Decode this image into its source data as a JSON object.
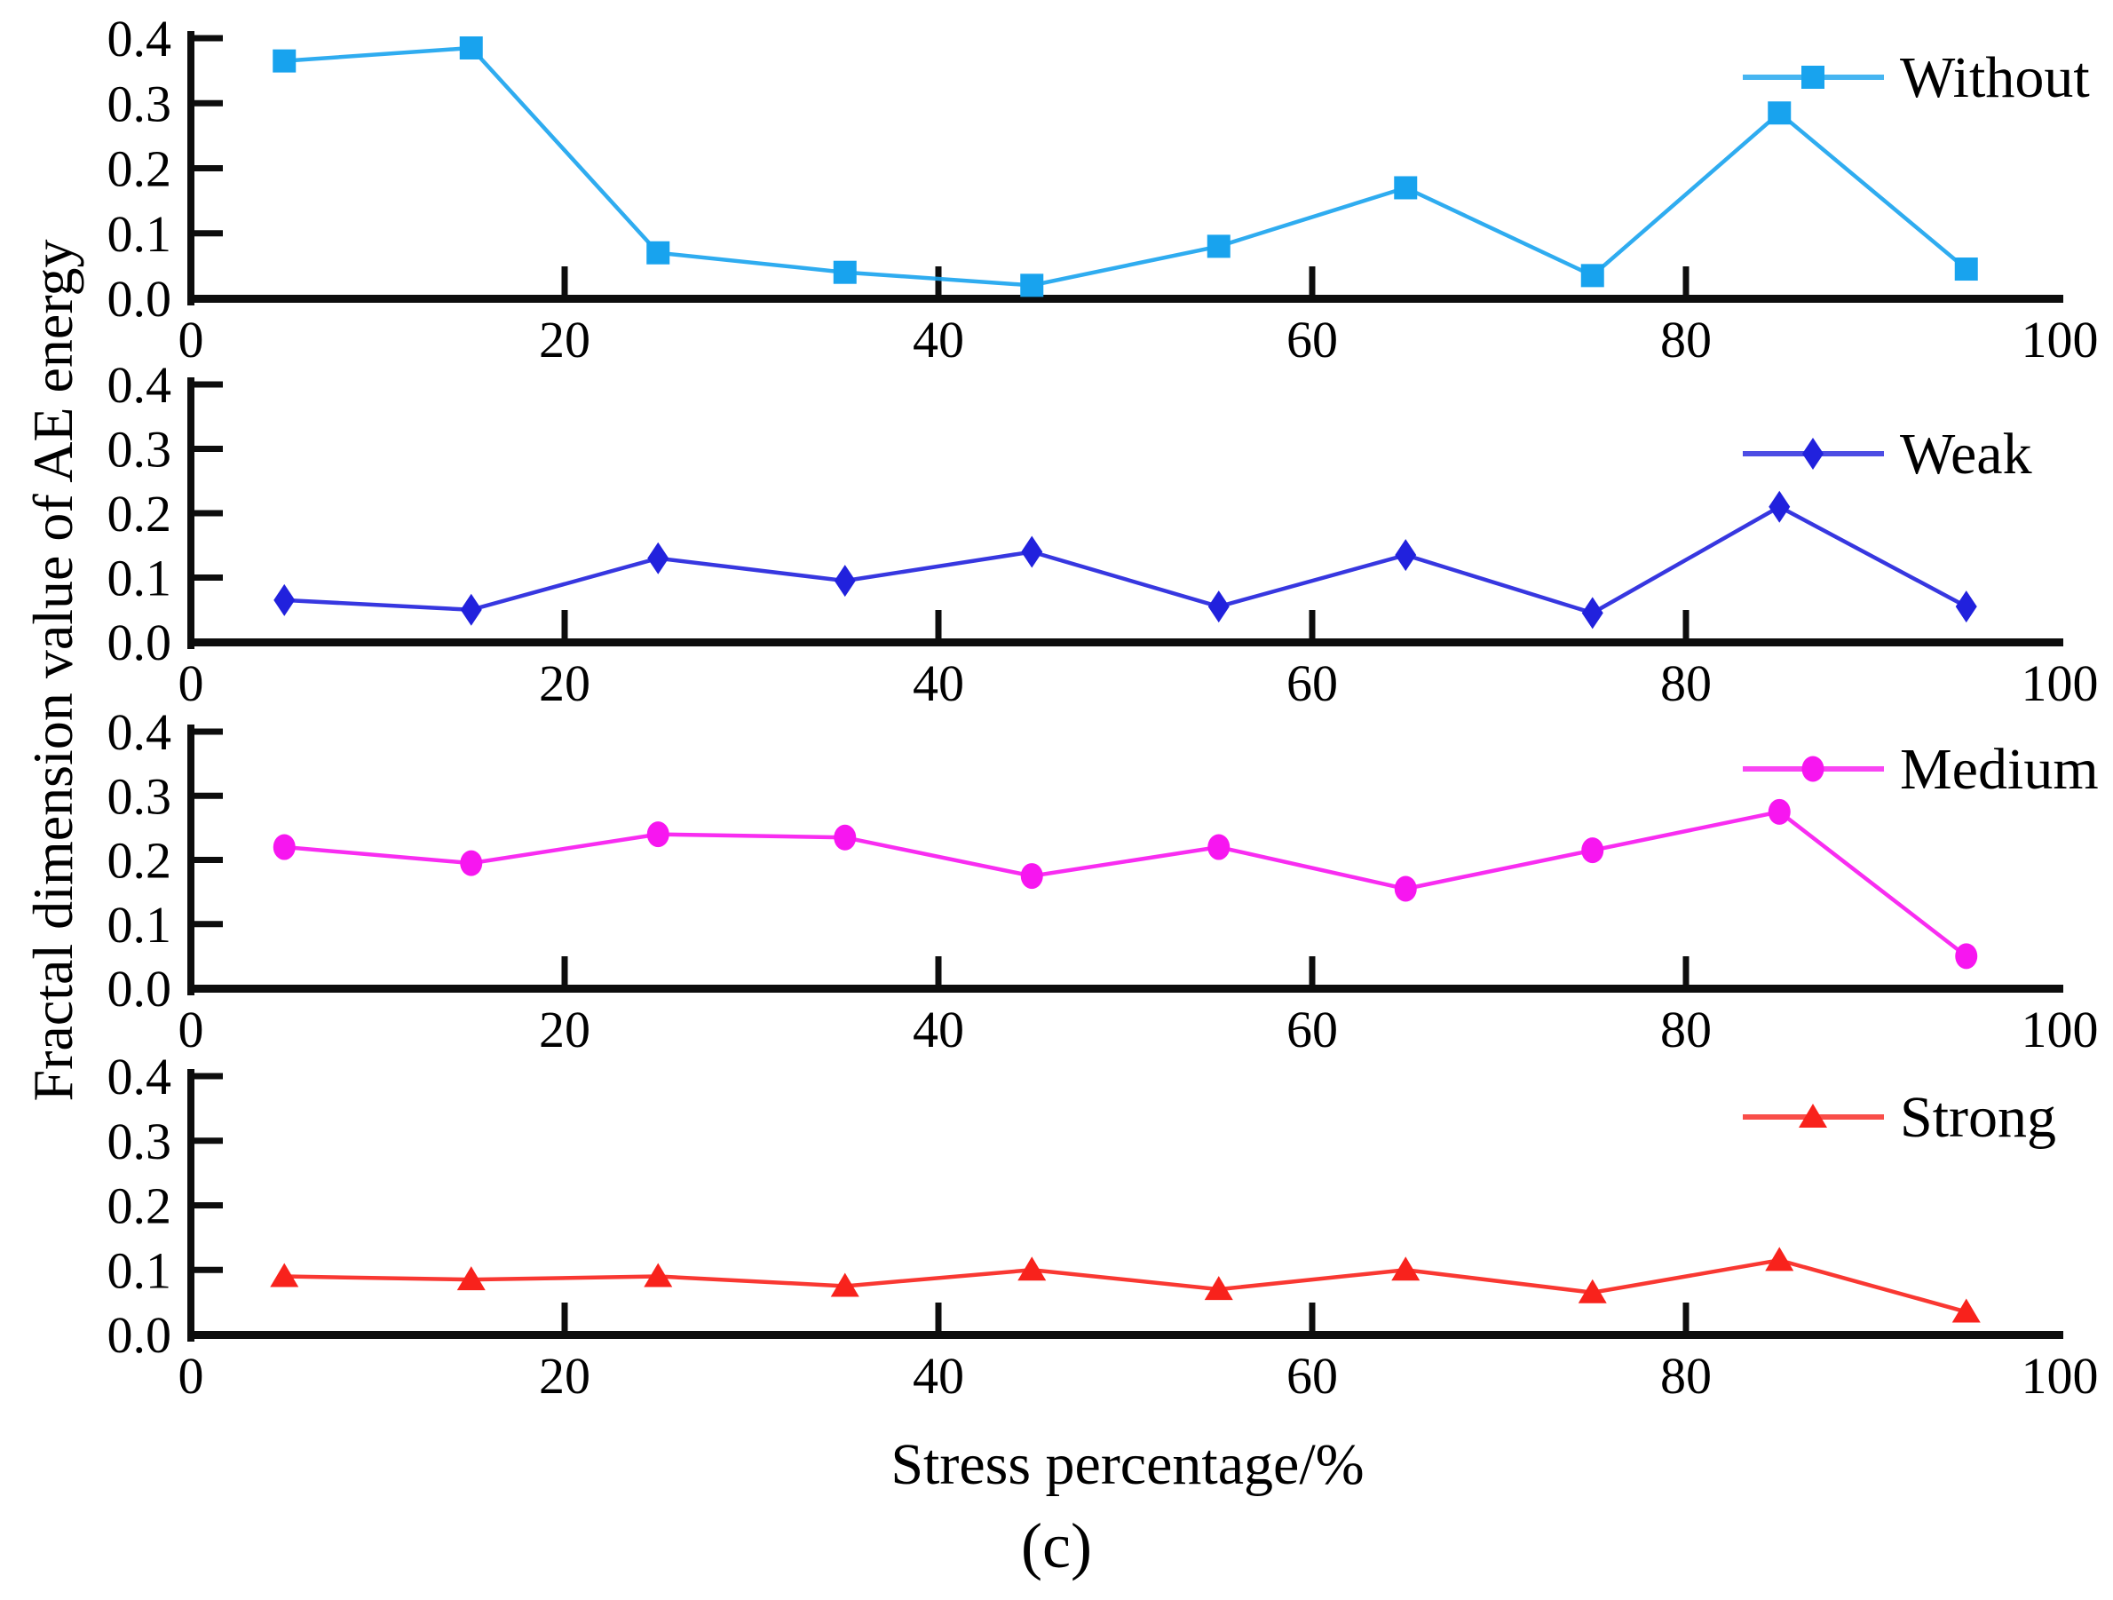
{
  "chart_data": {
    "type": "line",
    "title": "",
    "caption": "(c)",
    "x": [
      5,
      15,
      25,
      35,
      45,
      55,
      65,
      75,
      85,
      95
    ],
    "x_axis": {
      "label": "Stress percentage/%",
      "ticks": [
        "0",
        "20",
        "40",
        "60",
        "80",
        "100"
      ],
      "tick_values": [
        0,
        20,
        40,
        60,
        80,
        100
      ],
      "range": [
        0,
        100
      ]
    },
    "y_axis": {
      "label": "Fractal dimension value of AE energy",
      "ticks": [
        "0.0",
        "0.1",
        "0.2",
        "0.3",
        "0.4"
      ],
      "tick_values": [
        0,
        0.1,
        0.2,
        0.3,
        0.4
      ],
      "range": [
        0,
        0.4
      ]
    },
    "legend_position": "top-right-of-each-subplot",
    "grid": false,
    "subplots": [
      {
        "name": "Without",
        "marker": "square",
        "color": "#18a3ee",
        "values": [
          0.365,
          0.385,
          0.07,
          0.04,
          0.02,
          0.08,
          0.17,
          0.035,
          0.285,
          0.045
        ]
      },
      {
        "name": "Weak",
        "marker": "diamond",
        "color": "#2121dd",
        "values": [
          0.065,
          0.05,
          0.13,
          0.095,
          0.14,
          0.055,
          0.135,
          0.045,
          0.21,
          0.055
        ]
      },
      {
        "name": "Medium",
        "marker": "circle",
        "color": "#f716f0",
        "values": [
          0.22,
          0.195,
          0.24,
          0.235,
          0.175,
          0.22,
          0.155,
          0.215,
          0.275,
          0.05
        ]
      },
      {
        "name": "Strong",
        "marker": "triangle",
        "color": "#f8221c",
        "values": [
          0.09,
          0.085,
          0.09,
          0.075,
          0.1,
          0.07,
          0.1,
          0.065,
          0.115,
          0.035
        ]
      }
    ]
  }
}
